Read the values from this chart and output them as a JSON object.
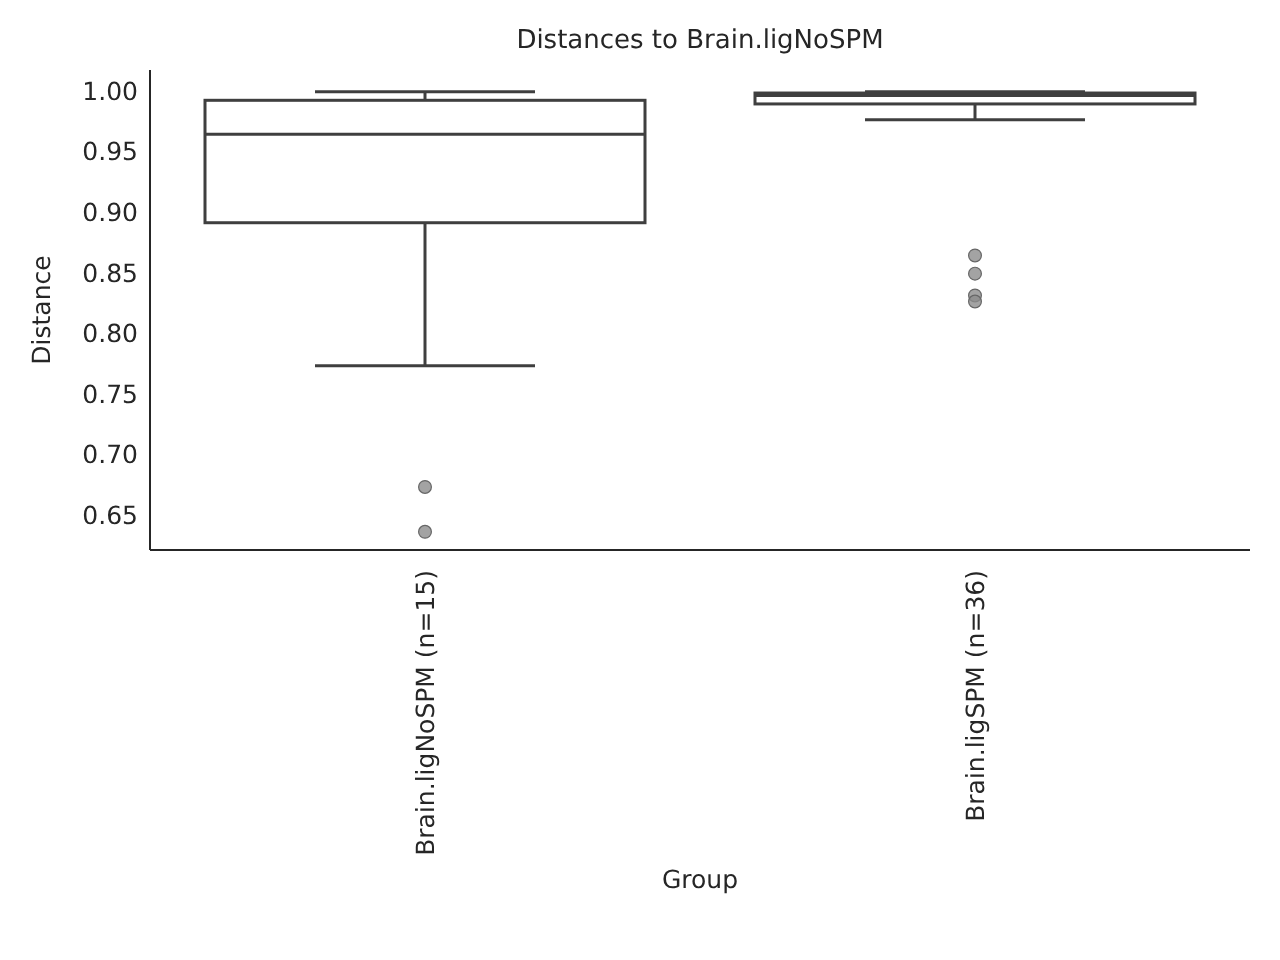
{
  "chart_data": {
    "type": "box",
    "title": "Distances to Brain.ligNoSPM",
    "xlabel": "Group",
    "ylabel": "Distance",
    "categories": [
      "Brain.ligNoSPM (n=15)",
      "Brain.ligSPM (n=36)"
    ],
    "ylim": [
      0.622,
      1.018
    ],
    "yticks": [
      {
        "value": 0.65,
        "label": "0.65"
      },
      {
        "value": 0.7,
        "label": "0.70"
      },
      {
        "value": 0.75,
        "label": "0.75"
      },
      {
        "value": 0.8,
        "label": "0.80"
      },
      {
        "value": 0.85,
        "label": "0.85"
      },
      {
        "value": 0.9,
        "label": "0.90"
      },
      {
        "value": 0.95,
        "label": "0.95"
      },
      {
        "value": 1.0,
        "label": "1.00"
      }
    ],
    "color": "#3f3f3f",
    "boxes": [
      {
        "low": 0.774,
        "q1": 0.892,
        "median": 0.965,
        "q3": 0.993,
        "high": 1.0,
        "outliers": [
          0.674,
          0.637
        ]
      },
      {
        "low": 0.977,
        "q1": 0.99,
        "median": 0.997,
        "q3": 0.999,
        "high": 1.0,
        "outliers": [
          0.865,
          0.85,
          0.832,
          0.827
        ]
      }
    ],
    "grid": false
  }
}
